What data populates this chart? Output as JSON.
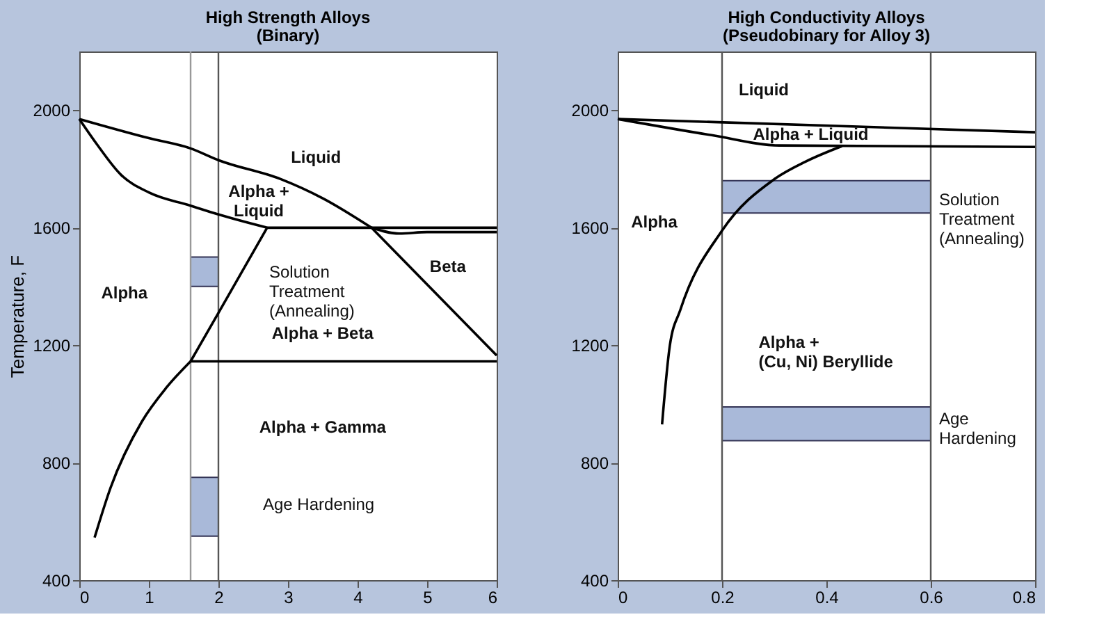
{
  "chart_data": [
    {
      "type": "line",
      "title": "High Strength Alloys",
      "subtitle": "(Binary)",
      "ylabel": "Temperature, F",
      "xlim": [
        0,
        6
      ],
      "xticks": [
        0,
        1,
        2,
        3,
        4,
        5,
        6
      ],
      "ylim": [
        400,
        2200
      ],
      "yticks": [
        400,
        800,
        1200,
        1600,
        2000
      ],
      "grid": false,
      "series": [
        {
          "color": "#000000",
          "x": [
            0,
            1,
            1.6,
            2,
            2.9,
            3.5,
            4.2
          ],
          "values": [
            1970,
            1905,
            1870,
            1830,
            1765,
            1700,
            1600
          ]
        },
        {
          "color": "#000000",
          "x": [
            0,
            0.25,
            0.6,
            1.0,
            1.6,
            2.0,
            2.7
          ],
          "values": [
            1970,
            1885,
            1780,
            1720,
            1675,
            1645,
            1600
          ]
        },
        {
          "color": "#000000",
          "x": [
            2.7,
            6
          ],
          "values": [
            1600,
            1600
          ]
        },
        {
          "color": "#000000",
          "x": [
            4.2,
            4.6,
            5,
            6
          ],
          "values": [
            1600,
            1580,
            1585,
            1585
          ]
        },
        {
          "color": "#000000",
          "x": [
            1.6,
            2.0,
            2.7
          ],
          "values": [
            1145,
            1310,
            1600
          ]
        },
        {
          "color": "#000000",
          "x": [
            4.2,
            6
          ],
          "values": [
            1600,
            1165
          ]
        },
        {
          "color": "#000000",
          "x": [
            1.6,
            6
          ],
          "values": [
            1145,
            1145
          ]
        },
        {
          "color": "#000000",
          "x": [
            0.22,
            0.45,
            0.9,
            1.25,
            1.6
          ],
          "values": [
            545,
            715,
            940,
            1055,
            1145
          ]
        },
        {
          "type": "area",
          "color": "#a9b9d9",
          "x": [
            1.6,
            2.0,
            2.0,
            1.6,
            1.6,
            null,
            1.6,
            2.0,
            2.0,
            1.6,
            1.6
          ],
          "values": [
            1500,
            1500,
            1400,
            1400,
            1500,
            null,
            750,
            750,
            550,
            550,
            750
          ]
        }
      ],
      "ref_lines": [
        {
          "axis": "x",
          "value": 1.6,
          "color": "#999999"
        },
        {
          "axis": "x",
          "value": 2,
          "color": "#555555"
        }
      ],
      "annotations": [
        "Liquid",
        "Alpha +\nLiquid",
        "Beta",
        "Alpha",
        "Alpha + Beta",
        "Alpha + Gamma",
        "Solution\nTreatment\n(Annealing)",
        "Age Hardening"
      ]
    },
    {
      "type": "line",
      "title": "High Conductivity Alloys",
      "subtitle": "(Pseudobinary for Alloy 3)",
      "xlim": [
        0,
        0.8
      ],
      "xticks": [
        0,
        0.2,
        0.4,
        0.6,
        0.8
      ],
      "ylim": [
        400,
        2200
      ],
      "yticks": [
        400,
        800,
        1200,
        1600,
        2000
      ],
      "grid": false,
      "series": [
        {
          "color": "#000000",
          "x": [
            0,
            0.8
          ],
          "values": [
            1970,
            1925
          ]
        },
        {
          "color": "#000000",
          "x": [
            0,
            0.18,
            0.31,
            0.8
          ],
          "values": [
            1970,
            1915,
            1880,
            1875
          ]
        },
        {
          "color": "#000000",
          "x": [
            0.085,
            0.1,
            0.12,
            0.2,
            0.3,
            0.36,
            0.43
          ],
          "values": [
            930,
            1200,
            1320,
            1590,
            1765,
            1825,
            1878
          ]
        },
        {
          "type": "area",
          "color": "#a9b9d9",
          "x": [
            0.2,
            0.6,
            0.6,
            0.2,
            0.2,
            null,
            0.2,
            0.6,
            0.6,
            0.2,
            0.2
          ],
          "values": [
            1760,
            1760,
            1650,
            1650,
            1760,
            null,
            990,
            990,
            875,
            875,
            990
          ]
        }
      ],
      "ref_lines": [
        {
          "axis": "x",
          "value": 0.2,
          "color": "#555555"
        },
        {
          "axis": "x",
          "value": 0.6,
          "color": "#555555"
        }
      ],
      "annotations": [
        "Liquid",
        "Alpha + Liquid",
        "Alpha",
        "Alpha +\n(Cu, Ni) Beryllide",
        "Solution\nTreatment\n(Annealing)",
        "Age\nHardening"
      ]
    }
  ]
}
